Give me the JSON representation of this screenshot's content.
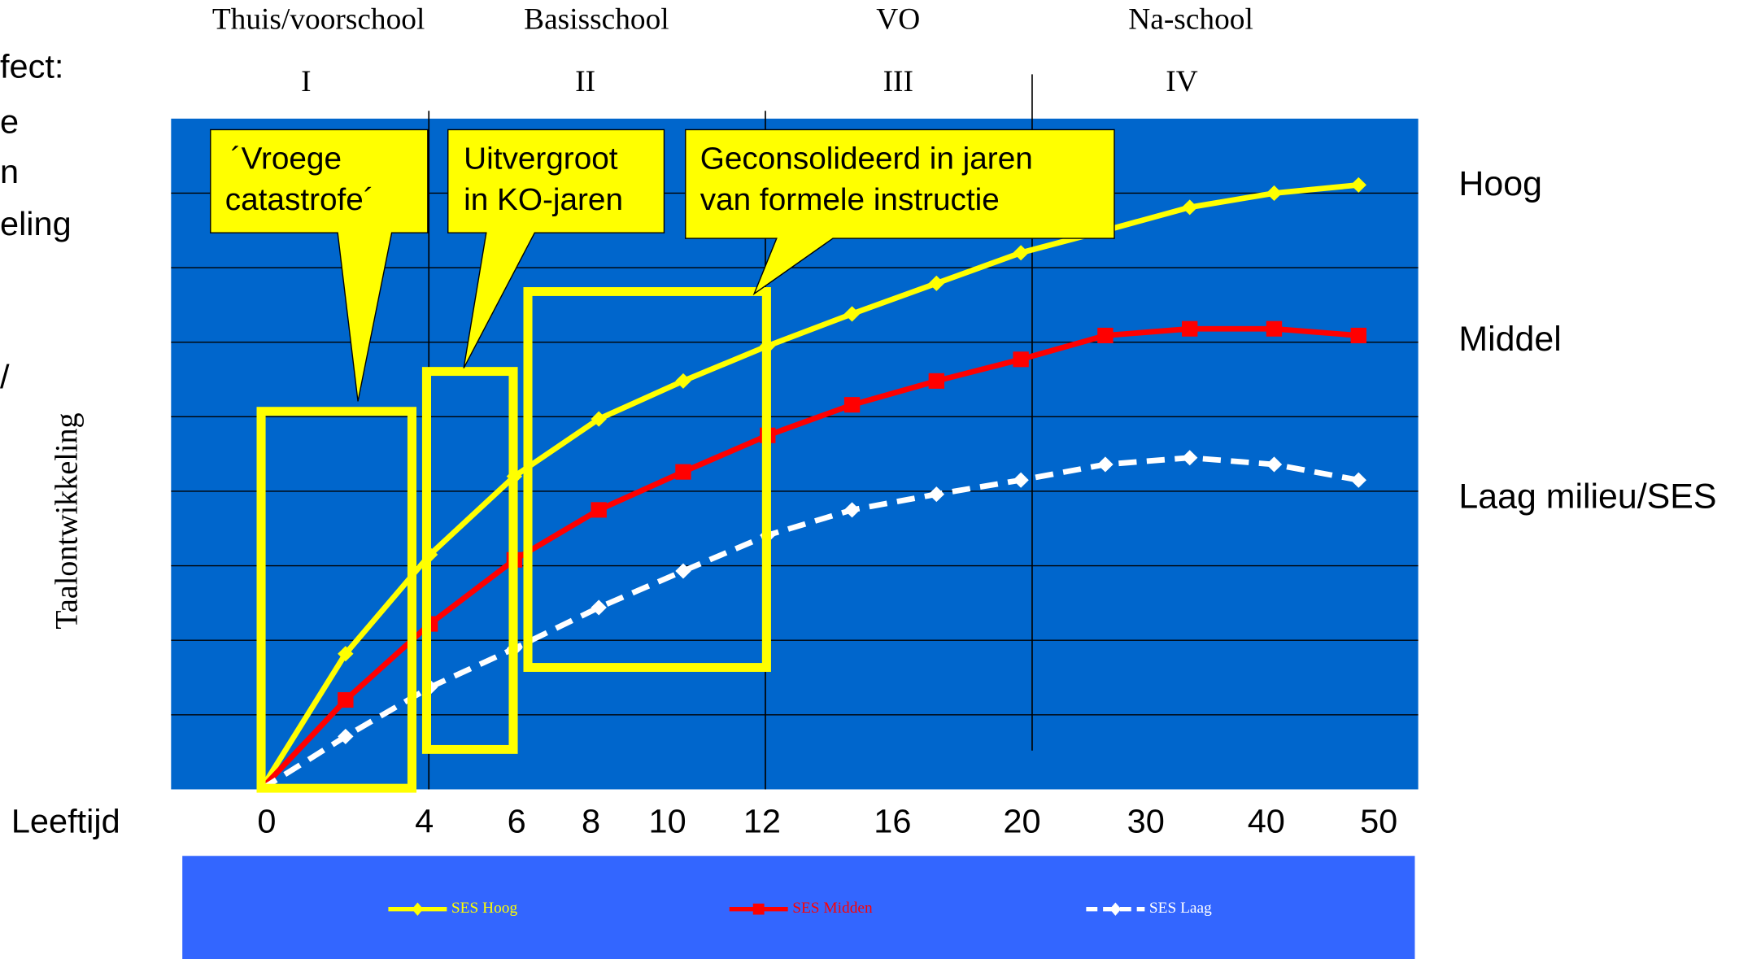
{
  "chart_data": {
    "type": "line",
    "side_text": [
      "fect:",
      "e",
      "n",
      "eling",
      "/"
    ],
    "phases": [
      "Thuis/voorschool",
      "Basisschool",
      "VO",
      "Na-school"
    ],
    "phase_numbers": [
      "I",
      "II",
      "III",
      "IV"
    ],
    "y_label": "Taalontwikkeling",
    "x_title": "Leeftijd",
    "x_labels": [
      "0",
      "4",
      "6",
      "8",
      "10",
      "12",
      "16",
      "20",
      "30",
      "40",
      "50"
    ],
    "callouts": [
      [
        "´Vroege",
        "catastrofe´"
      ],
      [
        "Uitvergroot",
        "in KO-jaren"
      ],
      [
        "Geconsolideerd in jaren",
        "van formele instructie"
      ]
    ],
    "ylim": [
      0,
      9
    ],
    "series": [
      {
        "name": "SES Hoog",
        "label": "Hoog",
        "color": "#ffff00",
        "marker": "diamond",
        "dash": false,
        "values": [
          0,
          1.82,
          3.15,
          4.2,
          4.97,
          5.48,
          5.95,
          6.38,
          6.79,
          7.2,
          7.5,
          7.81,
          8.0,
          8.11
        ]
      },
      {
        "name": "SES Midden",
        "label": "Middel",
        "color": "#ff0000",
        "marker": "square",
        "dash": false,
        "values": [
          0,
          1.2,
          2.22,
          3.08,
          3.75,
          4.26,
          4.75,
          5.16,
          5.48,
          5.77,
          6.09,
          6.18,
          6.18,
          6.09
        ]
      },
      {
        "name": "SES Laag",
        "label": "Laag milieu/SES",
        "color": "#ffffff",
        "marker": "diamond",
        "dash": true,
        "values": [
          0,
          0.71,
          1.37,
          1.89,
          2.44,
          2.93,
          3.41,
          3.75,
          3.96,
          4.15,
          4.36,
          4.45,
          4.36,
          4.15
        ]
      }
    ]
  }
}
